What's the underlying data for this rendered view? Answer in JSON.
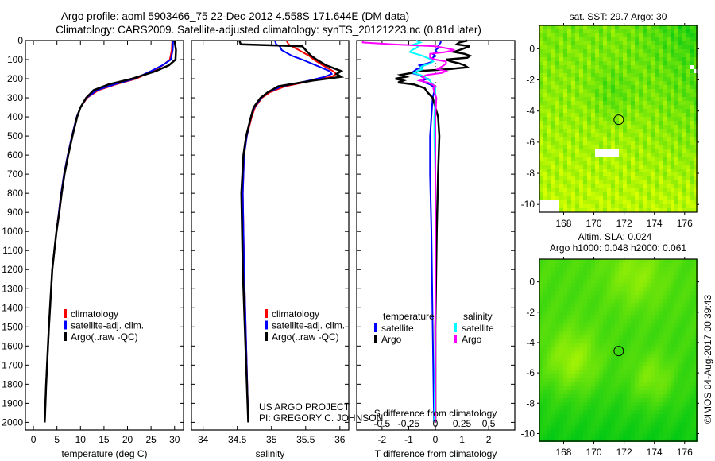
{
  "title": {
    "line1": "Argo profile: aoml 5903466_75 22-Dec-2012 4.558S 171.644E (DM data)",
    "line2": "Climatology: CARS2009. Satellite-adjusted climatology: synTS_20121223.nc (0.81d later)"
  },
  "colors": {
    "climatology": "#ff0000",
    "satellite": "#0000ff",
    "argo": "#000000",
    "sal_satellite": "#00ffff",
    "sal_argo": "#ff00ff"
  },
  "project_text": {
    "line1": "US ARGO PROJECT",
    "line2": "PI: GREGORY C. JOHNSON"
  },
  "credit": "©IMOS 04-Aug-2017 00:39:43",
  "chart_data": [
    {
      "type": "line",
      "name": "temperature-profile",
      "xlabel": "temperature (deg C)",
      "ylabel": "pressure",
      "xlim": [
        -1.7,
        31.9
      ],
      "ylim": [
        2040,
        0
      ],
      "xticks": [
        0,
        5,
        10,
        15,
        20,
        25,
        30
      ],
      "yticks": [
        0,
        100,
        200,
        300,
        400,
        500,
        600,
        700,
        800,
        900,
        1000,
        1100,
        1200,
        1300,
        1400,
        1500,
        1600,
        1700,
        1800,
        1900,
        2000
      ],
      "legend": [
        "climatology",
        "satellite-adj. clim.",
        "Argo(..raw -QC)"
      ],
      "pressure": [
        0,
        50,
        100,
        130,
        160,
        200,
        230,
        260,
        300,
        350,
        400,
        500,
        600,
        700,
        800,
        900,
        1000,
        1200,
        1500,
        1800,
        2000
      ],
      "series": [
        {
          "name": "climatology",
          "values": [
            29.5,
            29.4,
            29.0,
            27.5,
            25.3,
            21.8,
            17.5,
            13.8,
            11.4,
            10.0,
            9.2,
            8.2,
            7.3,
            6.5,
            5.9,
            5.4,
            4.9,
            4.0,
            3.3,
            2.7,
            2.4
          ]
        },
        {
          "name": "satellite-adj. clim.",
          "values": [
            29.7,
            29.6,
            29.2,
            27.4,
            25.0,
            21.5,
            17.2,
            13.5,
            11.3,
            10.0,
            9.2,
            8.2,
            7.3,
            6.5,
            5.9,
            5.4,
            4.9,
            4.0,
            3.3,
            2.7,
            2.4
          ]
        },
        {
          "name": "Argo",
          "values": [
            30.0,
            30.3,
            30.2,
            28.8,
            26.0,
            21.0,
            16.0,
            12.8,
            11.2,
            10.0,
            9.3,
            8.3,
            7.4,
            6.6,
            6.0,
            5.5,
            4.9,
            4.0,
            3.3,
            2.7,
            2.4
          ]
        }
      ]
    },
    {
      "type": "line",
      "name": "salinity-profile",
      "xlabel": "salinity",
      "xlim": [
        33.83,
        36.13
      ],
      "ylim": [
        2040,
        0
      ],
      "xticks": [
        34,
        34.5,
        35,
        35.5,
        36
      ],
      "legend": [
        "climatology",
        "satellite-adj. clim.",
        "Argo(..raw -QC)"
      ],
      "pressure": [
        0,
        20,
        30,
        50,
        80,
        100,
        130,
        160,
        175,
        190,
        210,
        240,
        270,
        300,
        350,
        400,
        500,
        600,
        800,
        1200,
        1600,
        2000
      ],
      "series": [
        {
          "name": "climatology",
          "values": [
            35.22,
            35.25,
            35.3,
            35.4,
            35.55,
            35.62,
            35.75,
            35.9,
            35.95,
            35.88,
            35.6,
            35.2,
            34.98,
            34.86,
            34.76,
            34.71,
            34.64,
            34.6,
            34.58,
            34.6,
            34.63,
            34.66
          ]
        },
        {
          "name": "satellite-adj. clim.",
          "values": [
            35.05,
            35.07,
            35.12,
            35.15,
            35.3,
            35.45,
            35.65,
            35.85,
            35.88,
            35.78,
            35.55,
            35.15,
            34.95,
            34.85,
            34.75,
            34.7,
            34.64,
            34.6,
            34.58,
            34.6,
            34.63,
            34.66
          ]
        },
        {
          "name": "Argo",
          "values": [
            34.53,
            34.55,
            35.45,
            35.5,
            35.58,
            35.66,
            35.8,
            36.02,
            35.95,
            36.02,
            35.6,
            35.1,
            34.95,
            34.84,
            34.74,
            34.7,
            34.63,
            34.59,
            34.56,
            34.58,
            34.62,
            34.66
          ]
        }
      ]
    },
    {
      "type": "line",
      "name": "difference-profile",
      "xlabel": "T difference from climatology",
      "xlabel_top": "S difference from climatology",
      "xlim": [
        -2.95,
        2.98
      ],
      "ylim": [
        2040,
        0
      ],
      "xticks": [
        -2,
        -1,
        0,
        1,
        2
      ],
      "xticks_s": [
        -0.5,
        -0.25,
        0,
        0.25,
        0.5
      ],
      "legend_groups": [
        {
          "title": "temperature",
          "entries": [
            "satellite",
            "Argo"
          ]
        },
        {
          "title": "salinity",
          "entries": [
            "satellite",
            "Argo"
          ]
        }
      ],
      "pressure": [
        0,
        10,
        20,
        30,
        40,
        50,
        60,
        70,
        80,
        90,
        100,
        110,
        120,
        130,
        140,
        150,
        160,
        170,
        180,
        190,
        200,
        210,
        220,
        230,
        240,
        250,
        270,
        300,
        400,
        500,
        700,
        1000,
        1500,
        2000
      ],
      "series": [
        {
          "name": "temperature satellite",
          "unit": "T",
          "values": [
            0.2,
            0.2,
            0.15,
            0.1,
            0.1,
            0.0,
            0.05,
            -0.1,
            0.0,
            -0.1,
            -0.1,
            -0.1,
            -0.3,
            -0.6,
            -0.5,
            -0.7,
            -0.8,
            -0.9,
            -0.6,
            -0.5,
            -0.3,
            -0.5,
            -0.4,
            -0.2,
            -0.1,
            0.0,
            -0.05,
            -0.1,
            -0.15,
            -0.2,
            -0.2,
            -0.15,
            -0.1,
            -0.05
          ]
        },
        {
          "name": "temperature Argo",
          "unit": "T",
          "values": [
            1.2,
            0.9,
            0.8,
            1.3,
            1.1,
            0.9,
            0.7,
            1.1,
            1.3,
            1.2,
            0.4,
            0.6,
            0.9,
            1.1,
            1.2,
            0.5,
            -0.6,
            -0.9,
            -1.3,
            -1.1,
            -1.5,
            -1.2,
            -1.4,
            -0.8,
            -0.6,
            -0.4,
            -0.3,
            -0.1,
            0.1,
            0.15,
            0.1,
            0.05,
            0.0,
            0.0
          ]
        },
        {
          "name": "salinity satellite",
          "unit": "S",
          "values": [
            -0.18,
            -0.14,
            -0.2,
            -0.16,
            -0.18,
            -0.22,
            -0.24,
            -0.18,
            -0.12,
            -0.08,
            -0.04,
            -0.02,
            -0.05,
            -0.1,
            -0.14,
            -0.12,
            -0.17,
            -0.2,
            -0.14,
            -0.1,
            -0.08,
            -0.05,
            -0.04,
            -0.02,
            -0.01,
            0.0,
            0.0,
            0.0,
            -0.01,
            -0.01,
            0.0,
            0.0,
            0.0,
            -0.01
          ]
        },
        {
          "name": "salinity Argo",
          "unit": "S",
          "values": [
            -0.68,
            -0.68,
            -0.4,
            0.0,
            0.1,
            0.18,
            0.1,
            -0.05,
            -0.05,
            -0.05,
            0.0,
            0.1,
            0.1,
            0.08,
            0.05,
            0.02,
            0.1,
            0.06,
            -0.08,
            -0.12,
            -0.1,
            -0.15,
            -0.07,
            -0.03,
            0.0,
            -0.02,
            -0.01,
            0.01,
            0.0,
            0.0,
            0.0,
            0.0,
            0.0,
            0.0
          ]
        }
      ]
    },
    {
      "type": "heatmap",
      "name": "sst-map",
      "title": "sat. SST: 29.7 Argo: 30",
      "xlim": [
        166.4,
        176.8
      ],
      "ylim": [
        -10.5,
        1.5
      ],
      "xticks": [
        168,
        170,
        172,
        174,
        176
      ],
      "yticks": [
        0,
        -2,
        -4,
        -6,
        -8,
        -10
      ],
      "marker": {
        "lon": 171.644,
        "lat": -4.558
      }
    },
    {
      "type": "heatmap",
      "name": "sla-map",
      "title_line1": "Altim. SLA: 0.024",
      "title_line2": "Argo h1000: 0.048 h2000: 0.061",
      "xlim": [
        166.4,
        176.8
      ],
      "ylim": [
        -10.5,
        1.5
      ],
      "xticks": [
        168,
        170,
        172,
        174,
        176
      ],
      "yticks": [
        0,
        -2,
        -4,
        -6,
        -8,
        -10
      ],
      "marker": {
        "lon": 171.644,
        "lat": -4.558
      }
    }
  ]
}
